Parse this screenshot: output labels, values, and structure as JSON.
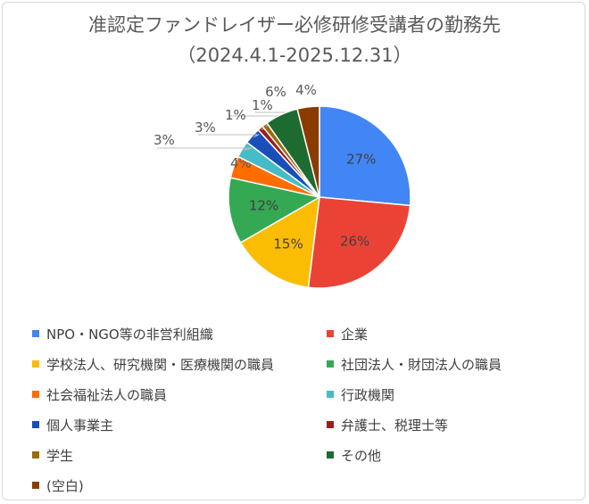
{
  "chart_data": {
    "type": "pie",
    "title": "准認定ファンドレイザー必修研修受講者の勤務先",
    "subtitle": "（2024.4.1-2025.12.31）",
    "legend_position": "bottom",
    "series": [
      {
        "name": "NPO・NGO等の非営利組織",
        "value": 27,
        "label": "27%",
        "color": "#4285f4"
      },
      {
        "name": "企業",
        "value": 26,
        "label": "26%",
        "color": "#ea4335"
      },
      {
        "name": "学校法人、研究機関・医療機関の職員",
        "value": 15,
        "label": "15%",
        "color": "#fbbc04"
      },
      {
        "name": "社団法人・財団法人の職員",
        "value": 12,
        "label": "12%",
        "color": "#34a853"
      },
      {
        "name": "社会福祉法人の職員",
        "value": 4,
        "label": "4%",
        "color": "#ff6d01"
      },
      {
        "name": "行政機関",
        "value": 3,
        "label": "3%",
        "color": "#46bdc6"
      },
      {
        "name": "個人事業主",
        "value": 3,
        "label": "3%",
        "color": "#1a4fba"
      },
      {
        "name": "弁護士、税理士等",
        "value": 1,
        "label": "1%",
        "color": "#9c1c1c"
      },
      {
        "name": "学生",
        "value": 1,
        "label": "1%",
        "color": "#9c6b0e"
      },
      {
        "name": "その他",
        "value": 6,
        "label": "6%",
        "color": "#1e6b31"
      },
      {
        "name": "(空白)",
        "value": 4,
        "label": "4%",
        "color": "#8a3c00"
      }
    ]
  }
}
